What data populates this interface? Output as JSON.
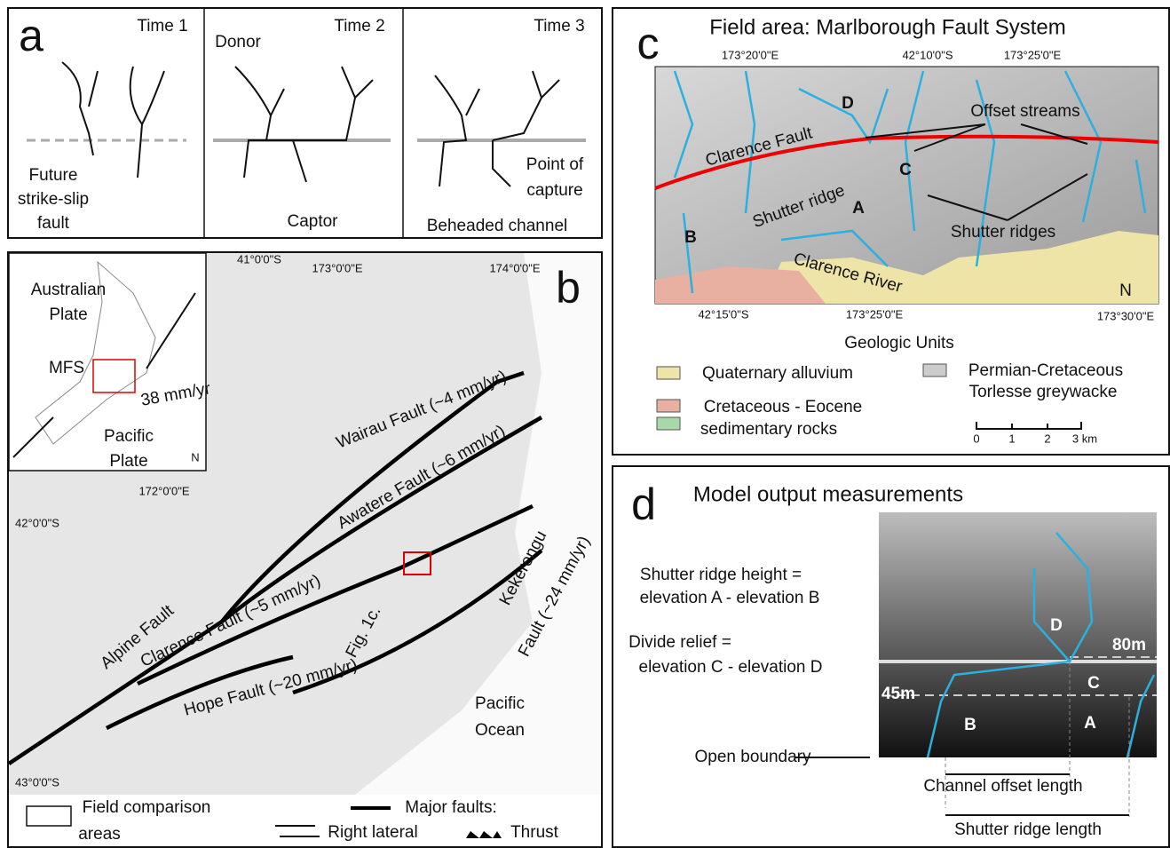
{
  "panel_a": {
    "label": "a",
    "times": [
      "Time 1",
      "Time 2",
      "Time 3"
    ],
    "donor": "Donor",
    "future_fault": [
      "Future",
      "strike-slip",
      "fault"
    ],
    "captor": "Captor",
    "point_of_capture": [
      "Point of",
      "capture"
    ],
    "beheaded_channel": "Beheaded channel"
  },
  "panel_b": {
    "label": "b",
    "coords": [
      "41°0'0\"S",
      "173°0'0\"E",
      "174°0'0\"E",
      "172°0'0\"E",
      "42°0'0\"S",
      "43°0'0\"S"
    ],
    "inset": {
      "australian_plate": [
        "Australian",
        "Plate"
      ],
      "mfs": "MFS",
      "rate": "38 mm/yr",
      "pacific_plate": [
        "Pacific",
        "Plate"
      ],
      "north": "N"
    },
    "faults": {
      "wairau": "Wairau Fault (~4 mm/yr)",
      "awatere": "Awatere Fault (~6 mm/yr)",
      "clarence": "Clarence Fault (~5 mm/yr)",
      "hope": "Hope Fault (~20 mm/yr)",
      "alpine": "Alpine Fault",
      "kekerengu": [
        "Kekerengu",
        "Fault (~24 mm/yr)"
      ]
    },
    "fig_ref": "Fig. 1c.",
    "ocean": [
      "Pacific",
      "Ocean"
    ],
    "legend": {
      "field_areas": [
        "Field comparison",
        "areas"
      ],
      "major_faults": "Major faults:",
      "right_lateral": "Right lateral",
      "thrust": "Thrust"
    }
  },
  "panel_c": {
    "label": "c",
    "title": "Field area: Marlborough Fault System",
    "coords": [
      "173°20'0\"E",
      "42°10'0\"S",
      "173°25'0\"E",
      "42°15'0\"S",
      "173°25'0\"E",
      "173°30'0\"E"
    ],
    "map": {
      "d": "D",
      "offset_streams": "Offset streams",
      "clarence_fault": "Clarence Fault",
      "c": "C",
      "shutter_ridge": "Shutter ridge",
      "a": "A",
      "shutter_ridges": "Shutter ridges",
      "b": "B",
      "clarence_river": "Clarence River",
      "north": "N"
    },
    "units_title": "Geologic Units",
    "units": {
      "quaternary": "Quaternary alluvium",
      "permian": [
        "Permian-Cretaceous",
        "Torlesse greywacke"
      ],
      "cretaceous": [
        "Cretaceous - Eocene",
        "sedimentary rocks"
      ]
    },
    "scale": [
      "0",
      "1",
      "2",
      "3 km"
    ]
  },
  "panel_d": {
    "label": "d",
    "title": "Model output measurements",
    "ridge_height": [
      "Shutter ridge height =",
      "elevation A -  elevation B"
    ],
    "divide_relief": [
      "Divide relief =",
      "elevation C - elevation D"
    ],
    "points": {
      "d": "D",
      "h80": "80m",
      "c": "C",
      "h45": "45m",
      "b": "B",
      "a": "A"
    },
    "open_boundary": "Open boundary",
    "channel_offset": "Channel offset length",
    "ridge_length": "Shutter ridge length"
  }
}
